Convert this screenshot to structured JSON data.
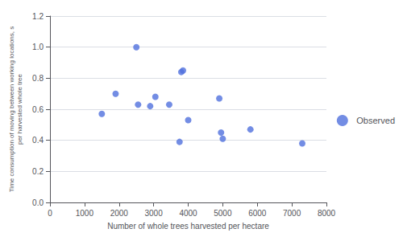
{
  "chart_data": {
    "type": "scatter",
    "x": [
      1500,
      1900,
      2500,
      2550,
      2900,
      3050,
      3450,
      3750,
      3800,
      3850,
      4000,
      4900,
      4950,
      5000,
      5800,
      7300
    ],
    "values": [
      0.57,
      0.7,
      1.0,
      0.63,
      0.62,
      0.68,
      0.63,
      0.39,
      0.84,
      0.85,
      0.53,
      0.67,
      0.45,
      0.41,
      0.47,
      0.38
    ],
    "series_name": "Observed",
    "xlabel": "Number of whole trees harvested per hectare",
    "ylabel": "Time consumption of moving between working locations, s\nper harvested whole tree",
    "xlim": [
      0,
      8000
    ],
    "ylim": [
      0.0,
      1.2
    ],
    "xticks": [
      0,
      1000,
      2000,
      3000,
      4000,
      5000,
      6000,
      7000,
      8000
    ],
    "yticks": [
      {
        "value": 0,
        "label": "0.0"
      },
      0.2,
      0.4,
      0.6,
      0.8,
      {
        "value": 1,
        "label": "1.0"
      },
      1.2
    ],
    "marker": "circle",
    "grid": true,
    "legend": "right"
  }
}
